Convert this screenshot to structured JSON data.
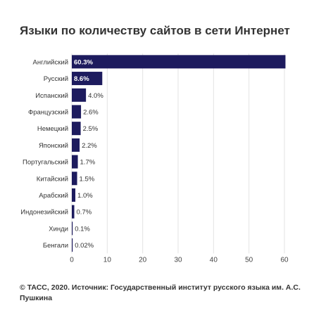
{
  "chart_data": {
    "type": "bar",
    "orientation": "horizontal",
    "title": "Языки по количеству сайтов в сети Интернет",
    "categories": [
      "Английский",
      "Русский",
      "Испанский",
      "Французский",
      "Немецкий",
      "Японский",
      "Португальский",
      "Китайский",
      "Арабский",
      "Индонезийский",
      "Хинди",
      "Бенгали"
    ],
    "values": [
      60.3,
      8.6,
      4.0,
      2.6,
      2.5,
      2.2,
      1.7,
      1.5,
      1.0,
      0.7,
      0.1,
      0.02
    ],
    "value_labels": [
      "60.3%",
      "8.6%",
      "4.0%",
      "2.6%",
      "2.5%",
      "2.2%",
      "1.7%",
      "1.5%",
      "1.0%",
      "0.7%",
      "0.1%",
      "0.02%"
    ],
    "xlim": [
      0,
      60
    ],
    "xticks": [
      0,
      10,
      20,
      30,
      40,
      50,
      60
    ],
    "grid": true,
    "xlabel": "",
    "ylabel": "",
    "bar_color": "#1d1b5e",
    "grid_color": "#e3e3e3"
  },
  "footer": {
    "source": "© ТАСС, 2020. Источник: Государственный институт русского языка им. А.С. Пушкина"
  }
}
